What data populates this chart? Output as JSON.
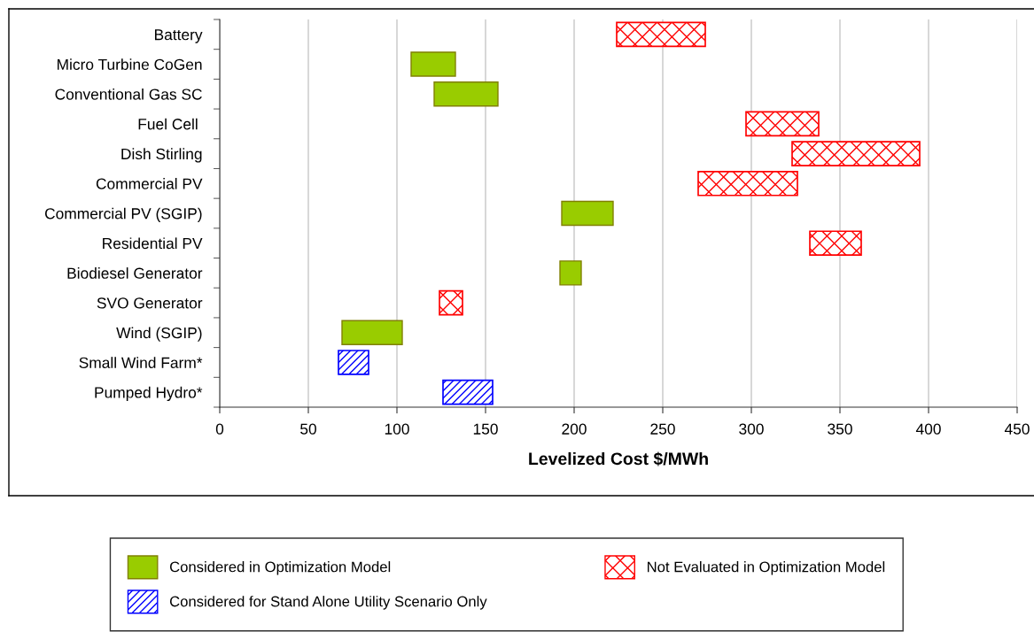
{
  "chart_data": {
    "type": "bar",
    "orientation": "horizontal",
    "xlabel": "Levelized Cost $/MWh",
    "categories": [
      "Battery",
      "Micro Turbine CoGen",
      "Conventional Gas SC",
      "Fuel Cell ",
      "Dish Stirling",
      "Commercial PV",
      "Commercial PV (SGIP)",
      "Residential PV",
      "Biodiesel Generator",
      "SVO Generator",
      "Wind (SGIP)",
      "Small Wind Farm*",
      "Pumped Hydro*"
    ],
    "series": [
      {
        "name": "Considered in Optimization Model",
        "color": "#99cc00",
        "base": [
          null,
          108,
          121,
          null,
          null,
          null,
          193,
          null,
          192,
          null,
          69,
          null,
          null
        ],
        "values": [
          null,
          25,
          36,
          null,
          null,
          null,
          29,
          null,
          12,
          null,
          34,
          null,
          null
        ]
      },
      {
        "name": "Not Evaluated in Optimization Model",
        "color": "#ff0000",
        "base": [
          224,
          null,
          null,
          297,
          323,
          270,
          null,
          333,
          null,
          124,
          null,
          null,
          null
        ],
        "values": [
          50,
          null,
          null,
          41,
          72,
          56,
          null,
          29,
          null,
          13,
          null,
          null,
          null
        ]
      },
      {
        "name": "Considered for Stand Alone Utility Scenario Only",
        "color": "#0000ff",
        "base": [
          null,
          null,
          null,
          null,
          null,
          null,
          null,
          null,
          null,
          null,
          null,
          67,
          126
        ],
        "values": [
          null,
          null,
          null,
          null,
          null,
          null,
          null,
          null,
          null,
          null,
          null,
          17,
          28
        ]
      }
    ],
    "xlim": [
      0,
      450
    ],
    "xticks": [
      0,
      50,
      100,
      150,
      200,
      250,
      300,
      350,
      400,
      450
    ],
    "grid": "x",
    "legend": "bottom"
  }
}
